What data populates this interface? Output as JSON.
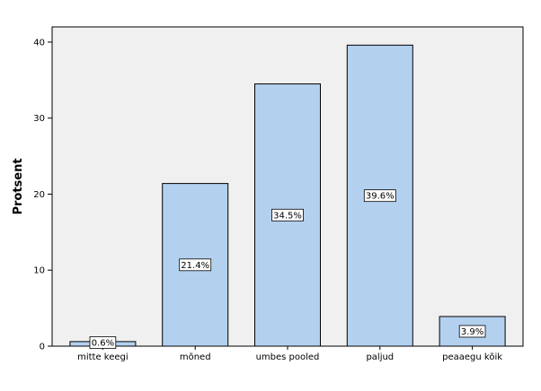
{
  "chart_data": {
    "type": "bar",
    "categories": [
      "mitte keegi",
      "mõned",
      "umbes pooled",
      "paljud",
      "peaaegu kõik"
    ],
    "values": [
      0.6,
      21.4,
      34.5,
      39.6,
      3.9
    ],
    "data_labels": [
      "0.6%",
      "21.4%",
      "34.5%",
      "39.6%",
      "3.9%"
    ],
    "ylabel": "Protsent",
    "ylim": [
      0,
      42
    ],
    "yticks": [
      0,
      10,
      20,
      30,
      40
    ],
    "grid": false,
    "colors": {
      "plot_background": "#f0f0f0",
      "bar_fill": "#b3d1ef",
      "bar_stroke": "#000000"
    }
  }
}
